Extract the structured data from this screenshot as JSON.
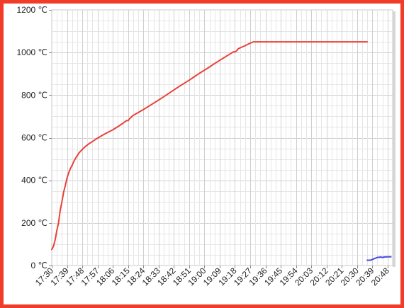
{
  "chart_data": {
    "type": "line",
    "title": "",
    "xlabel": "",
    "ylabel": "",
    "ylim": [
      0,
      1200
    ],
    "yticks": [
      "0 ℃",
      "200 ℃",
      "400 ℃",
      "600 ℃",
      "800 ℃",
      "1000 ℃",
      "1200 ℃"
    ],
    "xlim": [
      "17:30",
      "20:51"
    ],
    "xticks": [
      "17:30",
      "17:39",
      "17:48",
      "17:57",
      "18:06",
      "18:15",
      "18:24",
      "18:33",
      "18:42",
      "18:51",
      "19:00",
      "19:09",
      "19:18",
      "19:27",
      "19:36",
      "19:45",
      "19:54",
      "20:03",
      "20:12",
      "20:21",
      "20:30",
      "20:39",
      "20:48"
    ],
    "grid": true,
    "legend": "none",
    "series": [
      {
        "color": "#e8413a",
        "points": [
          [
            "17:30",
            75
          ],
          [
            "17:31",
            90
          ],
          [
            "17:32",
            120
          ],
          [
            "17:33",
            165
          ],
          [
            "17:34",
            200
          ],
          [
            "17:35",
            260
          ],
          [
            "17:36",
            300
          ],
          [
            "17:37",
            345
          ],
          [
            "17:38",
            375
          ],
          [
            "17:39",
            410
          ],
          [
            "17:40",
            435
          ],
          [
            "17:41",
            455
          ],
          [
            "17:42",
            470
          ],
          [
            "17:43",
            488
          ],
          [
            "17:44",
            503
          ],
          [
            "17:45",
            515
          ],
          [
            "17:46",
            528
          ],
          [
            "17:48",
            545
          ],
          [
            "17:50",
            560
          ],
          [
            "17:52",
            572
          ],
          [
            "17:54",
            582
          ],
          [
            "17:57",
            598
          ],
          [
            "18:00",
            612
          ],
          [
            "18:03",
            625
          ],
          [
            "18:06",
            637
          ],
          [
            "18:09",
            652
          ],
          [
            "18:12",
            668
          ],
          [
            "18:14",
            680
          ],
          [
            "18:15",
            680
          ],
          [
            "18:16",
            690
          ],
          [
            "18:18",
            705
          ],
          [
            "18:21",
            718
          ],
          [
            "18:24",
            732
          ],
          [
            "18:27",
            747
          ],
          [
            "18:30",
            762
          ],
          [
            "18:33",
            777
          ],
          [
            "18:36",
            792
          ],
          [
            "18:39",
            808
          ],
          [
            "18:42",
            824
          ],
          [
            "18:45",
            840
          ],
          [
            "18:48",
            855
          ],
          [
            "18:51",
            870
          ],
          [
            "18:54",
            886
          ],
          [
            "18:57",
            902
          ],
          [
            "19:00",
            917
          ],
          [
            "19:03",
            932
          ],
          [
            "19:06",
            948
          ],
          [
            "19:09",
            963
          ],
          [
            "19:12",
            978
          ],
          [
            "19:15",
            993
          ],
          [
            "19:17",
            1003
          ],
          [
            "19:18",
            1003
          ],
          [
            "19:19",
            1008
          ],
          [
            "19:20",
            1018
          ],
          [
            "19:22",
            1025
          ],
          [
            "19:24",
            1032
          ],
          [
            "19:26",
            1040
          ],
          [
            "19:28",
            1047
          ],
          [
            "19:29",
            1050
          ],
          [
            "19:36",
            1050
          ],
          [
            "19:45",
            1050
          ],
          [
            "19:54",
            1050
          ],
          [
            "20:03",
            1050
          ],
          [
            "20:12",
            1050
          ],
          [
            "20:21",
            1050
          ],
          [
            "20:30",
            1050
          ],
          [
            "20:36",
            1050
          ]
        ]
      },
      {
        "color": "#4848e6",
        "points": [
          [
            "20:36",
            25
          ],
          [
            "20:38",
            25
          ],
          [
            "20:40",
            32
          ],
          [
            "20:42",
            38
          ],
          [
            "20:44",
            40
          ],
          [
            "20:45",
            38
          ],
          [
            "20:46",
            40
          ],
          [
            "20:48",
            41
          ],
          [
            "20:50",
            41
          ]
        ]
      }
    ]
  }
}
